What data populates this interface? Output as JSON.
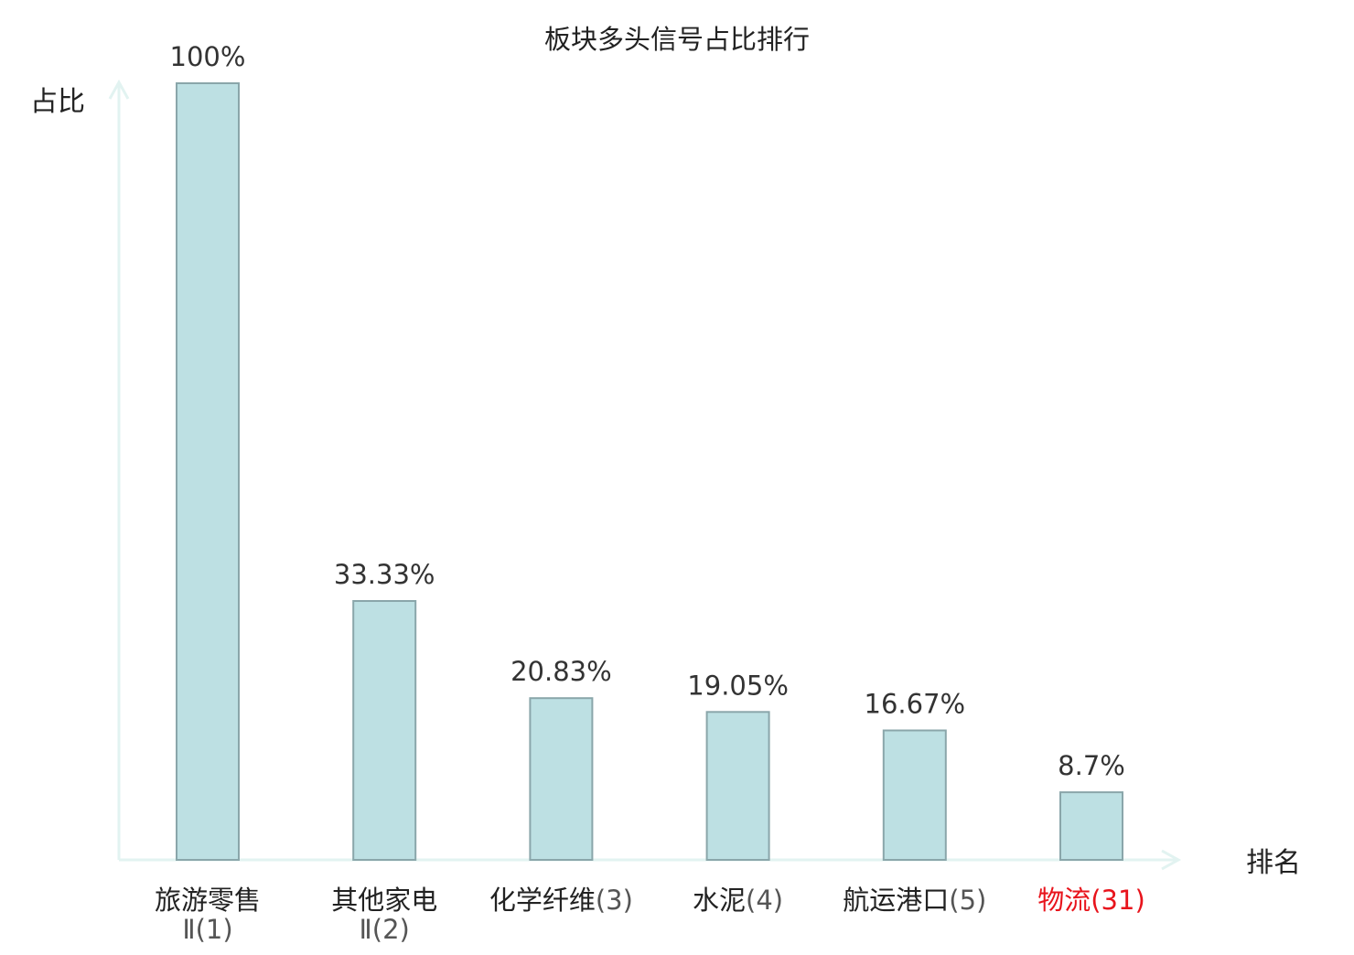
{
  "chart_data": {
    "type": "bar",
    "title": "板块多头信号占比排行",
    "ylabel": "占比",
    "xlabel": "排名",
    "ylim": [
      0,
      100
    ],
    "grid": false,
    "categories": [
      {
        "name_lines": [
          "旅游零售",
          "Ⅱ"
        ],
        "rank": "(1)",
        "highlight": false
      },
      {
        "name_lines": [
          "其他家电",
          "Ⅱ"
        ],
        "rank": "(2)",
        "highlight": false
      },
      {
        "name_lines": [
          "化学纤维"
        ],
        "rank": "(3)",
        "highlight": false
      },
      {
        "name_lines": [
          "水泥"
        ],
        "rank": "(4)",
        "highlight": false
      },
      {
        "name_lines": [
          "航运港口"
        ],
        "rank": "(5)",
        "highlight": false
      },
      {
        "name_lines": [
          "物流"
        ],
        "rank": "(31)",
        "highlight": true
      }
    ],
    "values": [
      100,
      33.33,
      20.83,
      19.05,
      16.67,
      8.7
    ],
    "value_labels": [
      "100%",
      "33.33%",
      "20.83%",
      "19.05%",
      "16.67%",
      "8.7%"
    ],
    "colors": {
      "bar_fill": "#bde0e3",
      "bar_stroke": "#8aa6aa",
      "axis": "#e2f3f1",
      "text": "#222222",
      "rank_text": "#555555",
      "highlight": "#e8141c"
    }
  }
}
